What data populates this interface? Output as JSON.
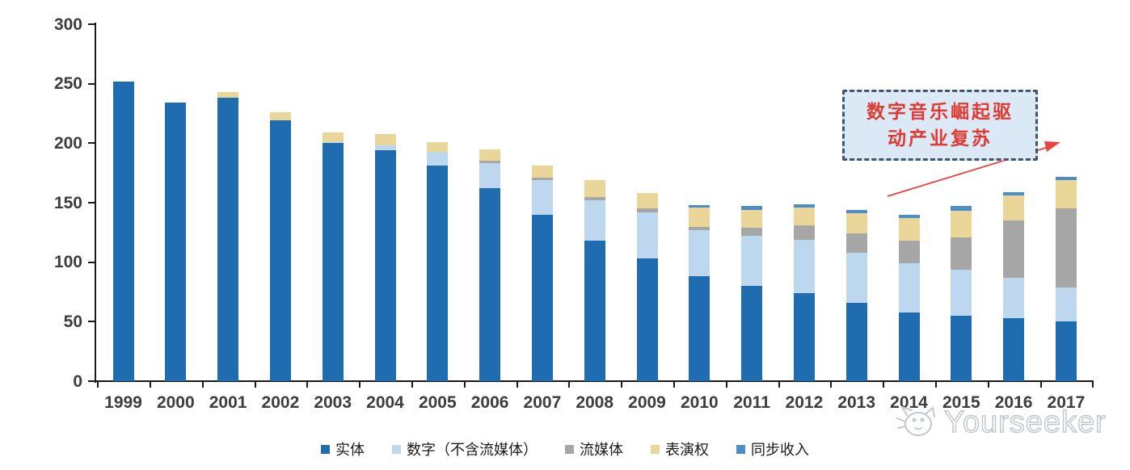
{
  "chart_data": {
    "type": "bar",
    "stacked": true,
    "title": "",
    "xlabel": "",
    "ylabel": "",
    "ylim": [
      0,
      300
    ],
    "ytick_step": 50,
    "yticks": [
      0,
      50,
      100,
      150,
      200,
      250,
      300
    ],
    "grid": false,
    "legend_position": "bottom-center",
    "categories": [
      "1999",
      "2000",
      "2001",
      "2002",
      "2003",
      "2004",
      "2005",
      "2006",
      "2007",
      "2008",
      "2009",
      "2010",
      "2011",
      "2012",
      "2013",
      "2014",
      "2015",
      "2016",
      "2017"
    ],
    "series": [
      {
        "name": "实体",
        "color": "#1f6cb0",
        "values": [
          252,
          234,
          238,
          219,
          200,
          194,
          181,
          162,
          140,
          118,
          103,
          88,
          80,
          74,
          66,
          58,
          55,
          53,
          50
        ]
      },
      {
        "name": "数字（不含流媒体）",
        "color": "#bdd7ee",
        "values": [
          0,
          0,
          0,
          0,
          1,
          4,
          12,
          21,
          29,
          34,
          39,
          39,
          42,
          45,
          42,
          41,
          39,
          34,
          29
        ]
      },
      {
        "name": "流媒体",
        "color": "#a6a6a6",
        "values": [
          0,
          0,
          0,
          0,
          0,
          0,
          0,
          2,
          2,
          3,
          3,
          3,
          7,
          12,
          16,
          19,
          27,
          48,
          66
        ]
      },
      {
        "name": "表演权",
        "color": "#ebd699",
        "values": [
          0,
          0,
          5,
          7,
          8,
          10,
          8,
          10,
          10,
          14,
          13,
          16,
          15,
          15,
          17,
          19,
          22,
          21,
          24
        ]
      },
      {
        "name": "同步收入",
        "color": "#4a8dc9",
        "values": [
          0,
          0,
          0,
          0,
          0,
          0,
          0,
          0,
          0,
          0,
          0,
          2,
          3,
          3,
          3,
          3,
          4,
          3,
          3
        ]
      }
    ]
  },
  "annotation": {
    "line1": "数字音乐崛起驱",
    "line2": "动产业复苏",
    "text_color": "#e03a33",
    "box_fill": "#dbe9f6",
    "box_border": "#44546a",
    "arrow_color": "#e8433e"
  },
  "watermark": {
    "text": "Yourseeker",
    "icon": "yourseeker-cat-logo",
    "color": "#c3c8cd"
  },
  "axis": {
    "text_color": "#3d3d3d",
    "line_color": "#1a1a1a"
  }
}
